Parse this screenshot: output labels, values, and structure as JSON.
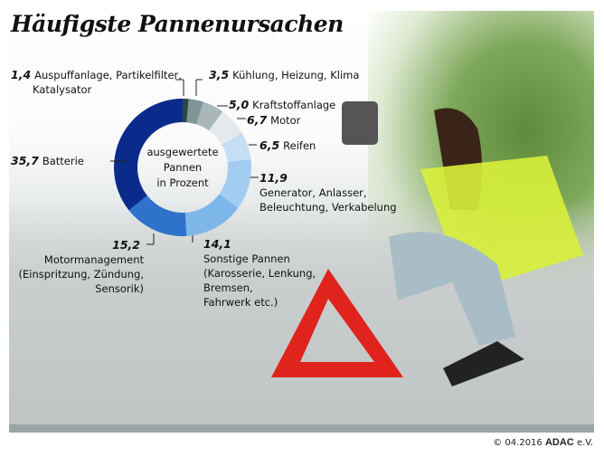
{
  "title": "Häufigste Pannenursachen",
  "chart_data": {
    "type": "pie",
    "donut": true,
    "center_label": [
      "ausgewertete",
      "Pannen",
      "in Prozent"
    ],
    "slices": [
      {
        "value": 1.4,
        "value_label": "1,4",
        "label": [
          "Auspuffanlage, Partikelfilter,",
          "Katalysator"
        ],
        "color": "#2e4747"
      },
      {
        "value": 3.5,
        "value_label": "3,5",
        "label": [
          "Kühlung, Heizung, Klima"
        ],
        "color": "#7f9597"
      },
      {
        "value": 5.0,
        "value_label": "5,0",
        "label": [
          "Kraftstoffanlage"
        ],
        "color": "#a9b7b9"
      },
      {
        "value": 6.7,
        "value_label": "6,7",
        "label": [
          "Motor"
        ],
        "color": "#e4eaec"
      },
      {
        "value": 6.5,
        "value_label": "6,5",
        "label": [
          "Reifen"
        ],
        "color": "#c6def4"
      },
      {
        "value": 11.9,
        "value_label": "11,9",
        "label": [
          "Generator, Anlasser,",
          "Beleuchtung, Verkabelung"
        ],
        "color": "#a2ccf0"
      },
      {
        "value": 14.1,
        "value_label": "14,1",
        "label": [
          "Sonstige Pannen",
          "(Karosserie, Lenkung,",
          "Bremsen,",
          "Fahrwerk etc.)"
        ],
        "color": "#7db7e9"
      },
      {
        "value": 15.2,
        "value_label": "15,2",
        "label": [
          "Motormanagement",
          "(Einspritzung, Zündung,",
          "Sensorik)"
        ],
        "color": "#2f72cc"
      },
      {
        "value": 35.7,
        "value_label": "35,7",
        "label": [
          "Batterie"
        ],
        "color": "#0b2b8c"
      }
    ]
  },
  "footer": {
    "copyright": "© 04.2016",
    "brand": "ADAC",
    "suffix": "e.V."
  }
}
